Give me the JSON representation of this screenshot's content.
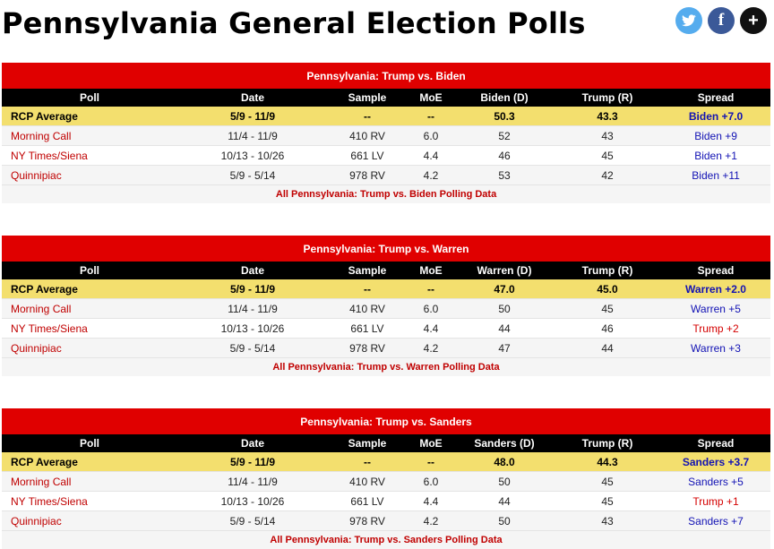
{
  "page": {
    "title": "Pennsylvania General Election Polls"
  },
  "social": {
    "facebook_glyph": "f",
    "more_glyph": "+"
  },
  "columns": {
    "poll": "Poll",
    "date": "Date",
    "sample": "Sample",
    "moe": "MoE",
    "trump": "Trump (R)",
    "spread": "Spread"
  },
  "tables": [
    {
      "title": "Pennsylvania: Trump vs. Biden",
      "dem_col": "Biden (D)",
      "average": {
        "poll": "RCP Average",
        "date": "5/9 - 11/9",
        "sample": "--",
        "moe": "--",
        "dem": "50.3",
        "rep": "43.3",
        "spread": "Biden +7.0",
        "party": "dem"
      },
      "rows": [
        {
          "poll": "Morning Call",
          "date": "11/4 - 11/9",
          "sample": "410 RV",
          "moe": "6.0",
          "dem": "52",
          "rep": "43",
          "spread": "Biden +9",
          "party": "dem"
        },
        {
          "poll": "NY Times/Siena",
          "date": "10/13 - 10/26",
          "sample": "661 LV",
          "moe": "4.4",
          "dem": "46",
          "rep": "45",
          "spread": "Biden +1",
          "party": "dem"
        },
        {
          "poll": "Quinnipiac",
          "date": "5/9 - 5/14",
          "sample": "978 RV",
          "moe": "4.2",
          "dem": "53",
          "rep": "42",
          "spread": "Biden +11",
          "party": "dem"
        }
      ],
      "link": "All Pennsylvania: Trump vs. Biden Polling Data"
    },
    {
      "title": "Pennsylvania: Trump vs. Warren",
      "dem_col": "Warren (D)",
      "average": {
        "poll": "RCP Average",
        "date": "5/9 - 11/9",
        "sample": "--",
        "moe": "--",
        "dem": "47.0",
        "rep": "45.0",
        "spread": "Warren +2.0",
        "party": "dem"
      },
      "rows": [
        {
          "poll": "Morning Call",
          "date": "11/4 - 11/9",
          "sample": "410 RV",
          "moe": "6.0",
          "dem": "50",
          "rep": "45",
          "spread": "Warren +5",
          "party": "dem"
        },
        {
          "poll": "NY Times/Siena",
          "date": "10/13 - 10/26",
          "sample": "661 LV",
          "moe": "4.4",
          "dem": "44",
          "rep": "46",
          "spread": "Trump +2",
          "party": "rep"
        },
        {
          "poll": "Quinnipiac",
          "date": "5/9 - 5/14",
          "sample": "978 RV",
          "moe": "4.2",
          "dem": "47",
          "rep": "44",
          "spread": "Warren +3",
          "party": "dem"
        }
      ],
      "link": "All Pennsylvania: Trump vs. Warren Polling Data"
    },
    {
      "title": "Pennsylvania: Trump vs. Sanders",
      "dem_col": "Sanders (D)",
      "average": {
        "poll": "RCP Average",
        "date": "5/9 - 11/9",
        "sample": "--",
        "moe": "--",
        "dem": "48.0",
        "rep": "44.3",
        "spread": "Sanders +3.7",
        "party": "dem"
      },
      "rows": [
        {
          "poll": "Morning Call",
          "date": "11/4 - 11/9",
          "sample": "410 RV",
          "moe": "6.0",
          "dem": "50",
          "rep": "45",
          "spread": "Sanders +5",
          "party": "dem"
        },
        {
          "poll": "NY Times/Siena",
          "date": "10/13 - 10/26",
          "sample": "661 LV",
          "moe": "4.4",
          "dem": "44",
          "rep": "45",
          "spread": "Trump +1",
          "party": "rep"
        },
        {
          "poll": "Quinnipiac",
          "date": "5/9 - 5/14",
          "sample": "978 RV",
          "moe": "4.2",
          "dem": "50",
          "rep": "43",
          "spread": "Sanders +7",
          "party": "dem"
        }
      ],
      "link": "All Pennsylvania: Trump vs. Sanders Polling Data"
    }
  ]
}
